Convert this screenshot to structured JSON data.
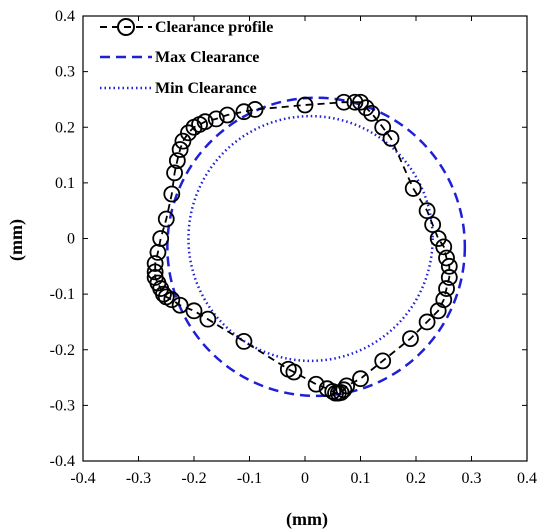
{
  "chart_data": {
    "type": "scatter",
    "title": "",
    "xlabel": "(mm)",
    "ylabel": "(mm)",
    "xlim": [
      -0.4,
      0.4
    ],
    "ylim": [
      -0.4,
      0.4
    ],
    "xticks": [
      -0.4,
      -0.3,
      -0.2,
      -0.1,
      0,
      0.1,
      0.2,
      0.3,
      0.4
    ],
    "yticks": [
      -0.4,
      -0.3,
      -0.2,
      -0.1,
      0,
      0.1,
      0.2,
      0.3,
      0.4
    ],
    "xtick_labels": [
      "-0.4",
      "-0.3",
      "-0.2",
      "-0.1",
      "0",
      "0.1",
      "0.2",
      "0.3",
      "0.4"
    ],
    "ytick_labels": [
      "-0.4",
      "-0.3",
      "-0.2",
      "-0.1",
      "0",
      "0.1",
      "0.2",
      "0.3",
      "0.4"
    ],
    "grid": false,
    "legend_position": "top-left",
    "legend": [
      {
        "label": "Clearance profile",
        "style": "black dashed line with circle markers"
      },
      {
        "label": "Max Clearance",
        "style": "blue dashed line"
      },
      {
        "label": "Min Clearance",
        "style": "blue dotted line"
      }
    ],
    "colors": {
      "profile": "#000000",
      "max": "#1f1fd6",
      "min": "#1f1fd6"
    },
    "series": [
      {
        "name": "Clearance profile",
        "x": [
          0.1,
          0.09,
          0.07,
          0.0,
          -0.09,
          -0.11,
          -0.14,
          -0.16,
          -0.18,
          -0.19,
          -0.2,
          -0.21,
          -0.22,
          -0.225,
          -0.23,
          -0.235,
          -0.24,
          -0.25,
          -0.26,
          -0.265,
          -0.27,
          -0.27,
          -0.27,
          -0.265,
          -0.26,
          -0.255,
          -0.25,
          -0.24,
          -0.225,
          -0.2,
          -0.175,
          -0.11,
          -0.03,
          -0.02,
          0.02,
          0.04,
          0.05,
          0.055,
          0.06,
          0.065,
          0.07,
          0.075,
          0.1,
          0.14,
          0.19,
          0.22,
          0.24,
          0.25,
          0.255,
          0.26,
          0.26,
          0.255,
          0.25,
          0.24,
          0.23,
          0.22,
          0.195,
          0.155,
          0.14,
          0.12,
          0.11
        ],
        "y": [
          0.245,
          0.245,
          0.245,
          0.24,
          0.232,
          0.228,
          0.222,
          0.215,
          0.21,
          0.205,
          0.2,
          0.19,
          0.175,
          0.16,
          0.14,
          0.118,
          0.08,
          0.035,
          0.0,
          -0.025,
          -0.045,
          -0.06,
          -0.07,
          -0.08,
          -0.09,
          -0.1,
          -0.105,
          -0.11,
          -0.12,
          -0.13,
          -0.145,
          -0.185,
          -0.235,
          -0.24,
          -0.262,
          -0.27,
          -0.275,
          -0.278,
          -0.278,
          -0.277,
          -0.272,
          -0.265,
          -0.252,
          -0.22,
          -0.18,
          -0.15,
          -0.13,
          -0.11,
          -0.09,
          -0.07,
          -0.05,
          -0.035,
          -0.015,
          0.0,
          0.025,
          0.05,
          0.09,
          0.18,
          0.2,
          0.225,
          0.235
        ]
      },
      {
        "name": "Max Clearance",
        "center": [
          0.02,
          -0.015
        ],
        "radius": 0.268
      },
      {
        "name": "Min Clearance",
        "center": [
          0.01,
          0.0
        ],
        "radius": 0.22
      }
    ]
  }
}
